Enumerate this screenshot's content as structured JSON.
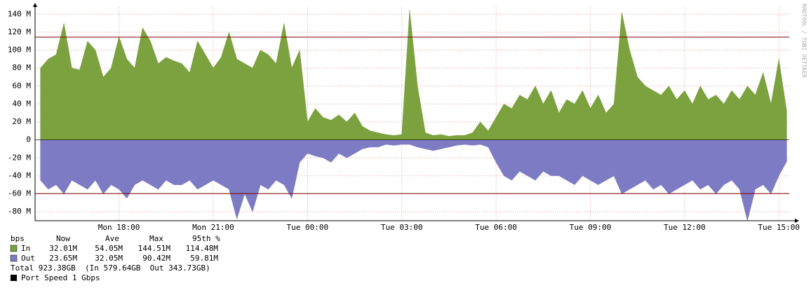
{
  "chart_data": {
    "type": "area",
    "x": [
      15.5,
      15.75,
      16,
      16.25,
      16.5,
      16.75,
      17,
      17.25,
      17.5,
      17.75,
      18,
      18.25,
      18.5,
      18.75,
      19,
      19.25,
      19.5,
      19.75,
      20,
      20.25,
      20.5,
      20.75,
      21,
      21.25,
      21.5,
      21.75,
      22,
      22.25,
      22.5,
      22.75,
      23,
      23.25,
      23.5,
      23.75,
      24,
      24.25,
      24.5,
      24.75,
      25,
      25.25,
      25.5,
      25.75,
      26,
      26.25,
      26.5,
      26.75,
      27,
      27.25,
      27.5,
      27.75,
      28,
      28.25,
      28.5,
      28.75,
      29,
      29.25,
      29.5,
      29.75,
      30,
      30.25,
      30.5,
      30.75,
      31,
      31.25,
      31.5,
      31.75,
      32,
      32.25,
      32.5,
      32.75,
      33,
      33.25,
      33.5,
      33.75,
      34,
      34.25,
      34.5,
      34.75,
      35,
      35.25,
      35.5,
      35.75,
      36,
      36.25,
      36.5,
      36.75,
      37,
      37.25,
      37.5,
      37.75,
      38,
      38.25,
      38.5,
      38.75,
      39,
      39.25
    ],
    "series": [
      {
        "name": "In",
        "color": "#7ba23f",
        "stats": [
          "32.01M",
          "54.05M",
          "144.51M",
          "114.48M"
        ],
        "values": [
          80,
          90,
          95,
          130,
          80,
          78,
          110,
          100,
          70,
          80,
          115,
          90,
          80,
          125,
          110,
          85,
          92,
          88,
          85,
          75,
          110,
          95,
          80,
          92,
          120,
          90,
          85,
          80,
          100,
          95,
          85,
          130,
          80,
          100,
          20,
          35,
          25,
          22,
          28,
          20,
          30,
          15,
          10,
          8,
          6,
          5,
          6,
          145,
          60,
          8,
          5,
          6,
          4,
          5,
          5,
          8,
          20,
          10,
          25,
          40,
          35,
          50,
          45,
          60,
          40,
          55,
          30,
          45,
          40,
          55,
          35,
          50,
          30,
          40,
          142,
          100,
          70,
          60,
          55,
          50,
          60,
          45,
          55,
          40,
          60,
          45,
          50,
          40,
          55,
          45,
          60,
          50,
          75,
          40,
          90,
          32
        ]
      },
      {
        "name": "Out",
        "color": "#7d7bc4",
        "stats": [
          "23.65M",
          "32.05M",
          "90.42M",
          "59.81M"
        ],
        "values": [
          -45,
          -55,
          -50,
          -60,
          -45,
          -50,
          -55,
          -45,
          -60,
          -50,
          -55,
          -65,
          -50,
          -45,
          -50,
          -55,
          -45,
          -50,
          -50,
          -45,
          -55,
          -50,
          -45,
          -50,
          -55,
          -88,
          -60,
          -80,
          -50,
          -55,
          -45,
          -50,
          -65,
          -25,
          -15,
          -18,
          -20,
          -25,
          -15,
          -20,
          -15,
          -10,
          -8,
          -8,
          -5,
          -6,
          -5,
          -5,
          -8,
          -10,
          -12,
          -10,
          -8,
          -6,
          -5,
          -6,
          -5,
          -8,
          -25,
          -40,
          -45,
          -35,
          -40,
          -45,
          -35,
          -40,
          -40,
          -45,
          -50,
          -40,
          -45,
          -50,
          -45,
          -40,
          -60,
          -55,
          -50,
          -45,
          -55,
          -50,
          -60,
          -55,
          -50,
          -45,
          -55,
          -50,
          -60,
          -50,
          -45,
          -55,
          -90,
          -55,
          -50,
          -60,
          -40,
          -24
        ]
      }
    ],
    "hlines": [
      {
        "value": 114.48,
        "color": "#800000"
      },
      {
        "value": -59.81,
        "color": "#800000"
      }
    ],
    "xlim": [
      15.33,
      39.33
    ],
    "xticks": [
      {
        "value": 18,
        "label": "Mon 18:00"
      },
      {
        "value": 21,
        "label": "Mon 21:00"
      },
      {
        "value": 24,
        "label": "Tue 00:00"
      },
      {
        "value": 27,
        "label": "Tue 03:00"
      },
      {
        "value": 30,
        "label": "Tue 06:00"
      },
      {
        "value": 33,
        "label": "Tue 09:00"
      },
      {
        "value": 36,
        "label": "Tue 12:00"
      },
      {
        "value": 39,
        "label": "Tue 15:00"
      }
    ],
    "ylim": [
      -90,
      148
    ],
    "yticks": [
      {
        "value": -80,
        "label": "-80 M"
      },
      {
        "value": -60,
        "label": "-60 M"
      },
      {
        "value": -40,
        "label": "-40 M"
      },
      {
        "value": -20,
        "label": "-20 M"
      },
      0,
      {
        "value": 20,
        "label": "20 M"
      },
      {
        "value": 40,
        "label": "40 M"
      },
      {
        "value": 60,
        "label": "60 M"
      },
      {
        "value": 80,
        "label": "80 M"
      },
      {
        "value": 100,
        "label": "100 M"
      },
      {
        "value": 120,
        "label": "120 M"
      },
      {
        "value": 140,
        "label": "140 M"
      }
    ],
    "grid": true,
    "legend_header": [
      "bps",
      "Now",
      "Ave",
      "Max",
      "95th %"
    ],
    "total": "Total 923.38GB  (In 579.64GB  Out 343.73GB)",
    "note": "Port Speed 1 Gbps",
    "watermark": "RRDTOOL / TOBI OETIKER"
  }
}
